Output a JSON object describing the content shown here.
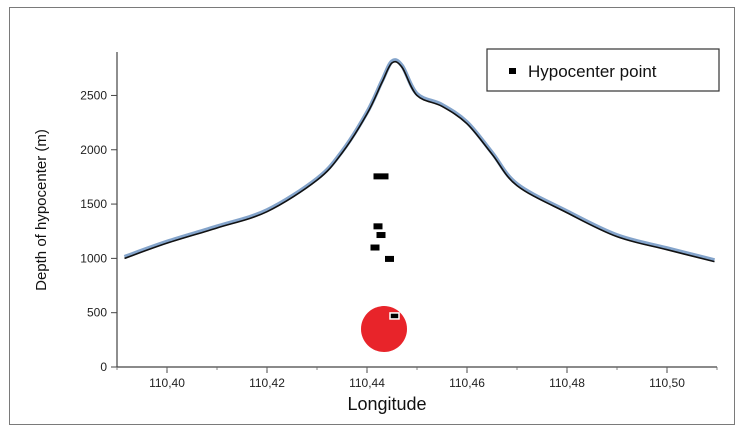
{
  "chart_data": {
    "type": "scatter",
    "xlabel": "Longitude",
    "ylabel": "Depth of hypocenter (m)",
    "xlim": [
      110.39,
      110.51
    ],
    "ylim": [
      0,
      2900
    ],
    "x_ticks": [
      "110,40",
      "110,42",
      "110,44",
      "110,46",
      "110,48",
      "110,50"
    ],
    "y_ticks": [
      "0",
      "500",
      "1000",
      "1500",
      "2000",
      "2500"
    ],
    "legend": {
      "position": "top-right",
      "entries": [
        "Hypocenter point"
      ]
    },
    "series": [
      {
        "name": "Hypocenter point",
        "marker": "square",
        "color": "#000000",
        "points": [
          {
            "x": 110.4428,
            "y": 1755
          },
          {
            "x": 110.4422,
            "y": 1295
          },
          {
            "x": 110.4428,
            "y": 1215
          },
          {
            "x": 110.4416,
            "y": 1100
          },
          {
            "x": 110.4445,
            "y": 995
          },
          {
            "x": 110.4455,
            "y": 470
          }
        ]
      }
    ],
    "surface_profile": {
      "color": "#111111",
      "peak_color": "#1f5aa0",
      "x": [
        110.3915,
        110.4,
        110.41,
        110.42,
        110.43,
        110.435,
        110.44,
        110.443,
        110.445,
        110.447,
        110.45,
        110.455,
        110.46,
        110.465,
        110.47,
        110.48,
        110.49,
        110.5,
        110.5095
      ],
      "y": [
        1000,
        1140,
        1280,
        1430,
        1720,
        1970,
        2330,
        2620,
        2800,
        2760,
        2500,
        2400,
        2240,
        1960,
        1670,
        1420,
        1200,
        1080,
        970
      ]
    },
    "highlight": {
      "label": "red-circle",
      "color": "#e8242a",
      "x": 110.4434,
      "y": 350
    }
  }
}
